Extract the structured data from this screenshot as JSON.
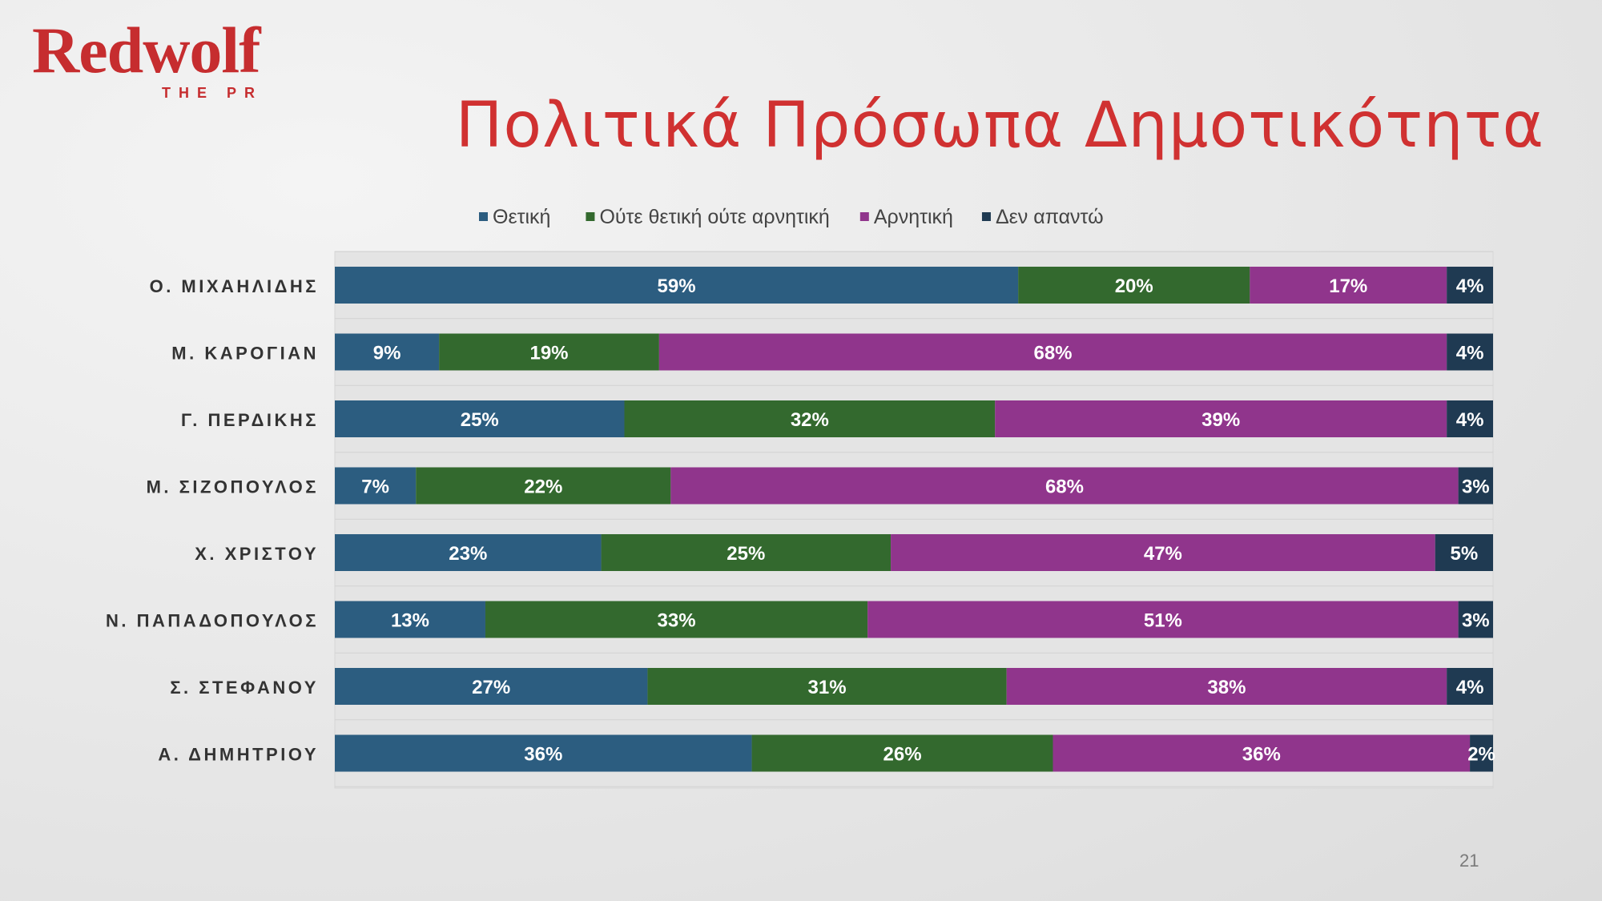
{
  "logo": {
    "brand": "Redwolf",
    "sub": "THE PR"
  },
  "title": "Πολιτικά Πρόσωπα Δημοτικότητα",
  "page_number": "21",
  "chart_data": {
    "type": "bar",
    "orientation": "horizontal",
    "stacked": "percent",
    "title": "Πολιτικά Πρόσωπα Δημοτικότητα",
    "xlabel": "",
    "ylabel": "",
    "xlim": [
      0,
      100
    ],
    "grid": true,
    "legend_position": "top",
    "categories": [
      "Ο. ΜΙΧΑΗΛΙΔΗΣ",
      "Μ. ΚΑΡΟΓΙΑΝ",
      "Γ. ΠΕΡΔΙΚΗΣ",
      "Μ. ΣΙΖΟΠΟΥΛΟΣ",
      "Χ. ΧΡΙΣΤΟΥ",
      "Ν. ΠΑΠΑΔΟΠΟΥΛΟΣ",
      "Σ. ΣΤΕΦΑΝΟΥ",
      "Α. ΔΗΜΗΤΡΙΟΥ"
    ],
    "series": [
      {
        "name": "Θετική",
        "color": "#2c5d80",
        "values": [
          59,
          9,
          25,
          7,
          23,
          13,
          27,
          36
        ],
        "labels": [
          "59%",
          "9%",
          "25%",
          "7%",
          "23%",
          "13%",
          "27%",
          "36%"
        ]
      },
      {
        "name": "Ούτε θετική ούτε αρνητική",
        "color": "#33692e",
        "values": [
          20,
          19,
          32,
          22,
          25,
          33,
          31,
          26
        ],
        "labels": [
          "20%",
          "19%",
          "32%",
          "22%",
          "25%",
          "33%",
          "31%",
          "26%"
        ]
      },
      {
        "name": "Αρνητική",
        "color": "#90358c",
        "values": [
          17,
          68,
          39,
          68,
          47,
          51,
          38,
          36
        ],
        "labels": [
          "17%",
          "68%",
          "39%",
          "68%",
          "47%",
          "51%",
          "38%",
          "36%"
        ]
      },
      {
        "name": "Δεν απαντώ",
        "color": "#1f3a52",
        "values": [
          4,
          4,
          4,
          3,
          5,
          3,
          4,
          2
        ],
        "labels": [
          "4%",
          "4%",
          "4%",
          "3%",
          "5%",
          "3%",
          "4%",
          "2%"
        ]
      }
    ]
  }
}
